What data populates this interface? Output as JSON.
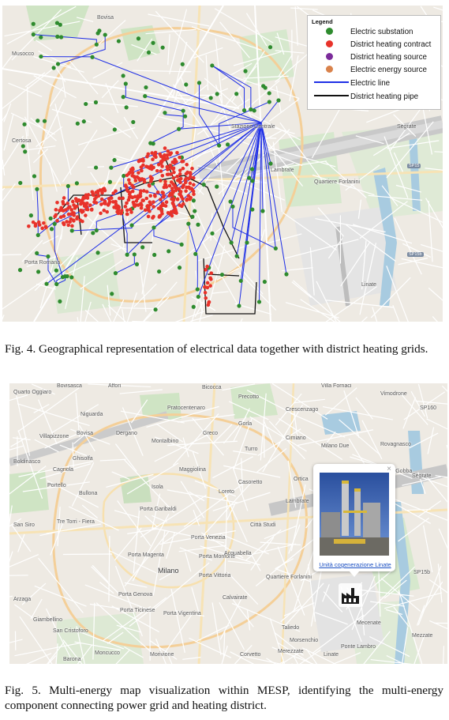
{
  "figure4": {
    "caption": "Fig.  4.  Geographical representation of electrical data together with district heating grids.",
    "map_labels": [
      "Certosa",
      "Musocco",
      "Bovisa",
      "Stazione Centrale",
      "Segrate",
      "Quartiere Forlanini",
      "Linate",
      "SP15",
      "SP15b",
      "Porta Romana",
      "Lambrate"
    ],
    "legend": {
      "title": "Legend",
      "items": [
        {
          "label": "Electric substation",
          "symbol": "dot",
          "color": "#2e8b2e"
        },
        {
          "label": "District heating contract",
          "symbol": "dot",
          "color": "#e8322a"
        },
        {
          "label": "District heating source",
          "symbol": "dot",
          "color": "#7b2b9a"
        },
        {
          "label": "Electric energy source",
          "symbol": "dot",
          "color": "#d9824b"
        },
        {
          "label": "Electric line",
          "symbol": "line",
          "color": "#1f2fe6"
        },
        {
          "label": "District heating pipe",
          "symbol": "line",
          "color": "#111111"
        }
      ]
    }
  },
  "figure5": {
    "caption": "Fig.  5.  Multi-energy map visualization within MESP, identifying the multi-energy component connecting power grid and heating district.",
    "popup": {
      "link_text": "Unità cogenerazione Linate",
      "close_glyph": "×",
      "icon": "factory-icon"
    },
    "places": [
      {
        "name": "Quarto Oggiaro"
      },
      {
        "name": "Bovisasca"
      },
      {
        "name": "Affori"
      },
      {
        "name": "Bicocca"
      },
      {
        "name": "Precotto"
      },
      {
        "name": "Vimodrone"
      },
      {
        "name": "Villa Fornaci"
      },
      {
        "name": "Crescenzago"
      },
      {
        "name": "Pratocentenaro"
      },
      {
        "name": "Niguarda"
      },
      {
        "name": "Villapizzone"
      },
      {
        "name": "Bovisa"
      },
      {
        "name": "Dergano"
      },
      {
        "name": "Greco"
      },
      {
        "name": "Gorla"
      },
      {
        "name": "Cimiano"
      },
      {
        "name": "Rovagnasco"
      },
      {
        "name": "Boldinasco"
      },
      {
        "name": "Ghisolfa"
      },
      {
        "name": "Montalbino"
      },
      {
        "name": "Maggiolina"
      },
      {
        "name": "Turro"
      },
      {
        "name": "Milano Due"
      },
      {
        "name": "Cagnola"
      },
      {
        "name": "Portello"
      },
      {
        "name": "Bullona"
      },
      {
        "name": "Isola"
      },
      {
        "name": "Loreto"
      },
      {
        "name": "Casoretto"
      },
      {
        "name": "Ortica"
      },
      {
        "name": "Segrate"
      },
      {
        "name": "Porta Garibaldi"
      },
      {
        "name": "Lambrate"
      },
      {
        "name": "Tre Torri - Fiera"
      },
      {
        "name": "San Siro"
      },
      {
        "name": "Città Studi"
      },
      {
        "name": "Porta Venezia"
      },
      {
        "name": "Porta Magenta"
      },
      {
        "name": "Porta Monforte"
      },
      {
        "name": "Acquabella"
      },
      {
        "name": "Milano"
      },
      {
        "name": "Porta Vittoria"
      },
      {
        "name": "Quartiere Forlanini"
      },
      {
        "name": "Porta Genova"
      },
      {
        "name": "Calvairate"
      },
      {
        "name": "Porta Ticinese"
      },
      {
        "name": "Porta Vigentina"
      },
      {
        "name": "Arzaga"
      },
      {
        "name": "Giambellino"
      },
      {
        "name": "San Cristoforo"
      },
      {
        "name": "Taliedo"
      },
      {
        "name": "Morsenchio"
      },
      {
        "name": "Linate"
      },
      {
        "name": "Mezzate"
      },
      {
        "name": "Barona"
      },
      {
        "name": "Moncucco"
      },
      {
        "name": "Morivione"
      },
      {
        "name": "Corvetto"
      },
      {
        "name": "Ponte Lambro"
      },
      {
        "name": "Merezzate"
      },
      {
        "name": "Mecenate"
      },
      {
        "name": "Tangenziale Est"
      },
      {
        "name": "SP15b"
      },
      {
        "name": "SP160"
      },
      {
        "name": "Cascina Gobba"
      }
    ]
  }
}
